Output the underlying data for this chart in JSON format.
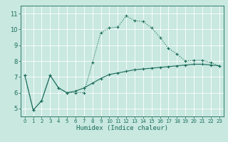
{
  "xlabel": "Humidex (Indice chaleur)",
  "ylabel": "",
  "xlim": [
    -0.5,
    23.5
  ],
  "ylim": [
    4.5,
    11.5
  ],
  "yticks": [
    5,
    6,
    7,
    8,
    9,
    10,
    11
  ],
  "xticks": [
    0,
    1,
    2,
    3,
    4,
    5,
    6,
    7,
    8,
    9,
    10,
    11,
    12,
    13,
    14,
    15,
    16,
    17,
    18,
    19,
    20,
    21,
    22,
    23
  ],
  "bg_color": "#c8e8e0",
  "grid_color": "#ffffff",
  "line_color": "#1a6b5a",
  "line1_x": [
    0,
    1,
    2,
    3,
    4,
    5,
    6,
    7,
    8,
    9,
    10,
    11,
    12,
    13,
    14,
    15,
    16,
    17,
    18,
    19,
    20,
    21,
    22,
    23
  ],
  "line1_y": [
    7.1,
    4.9,
    5.5,
    7.1,
    6.3,
    6.0,
    6.0,
    6.0,
    7.9,
    9.8,
    10.1,
    10.15,
    10.85,
    10.55,
    10.5,
    10.1,
    9.5,
    8.8,
    8.45,
    8.0,
    8.05,
    8.05,
    7.9,
    7.7
  ],
  "line2_x": [
    0,
    1,
    2,
    3,
    4,
    5,
    6,
    7,
    8,
    9,
    10,
    11,
    12,
    13,
    14,
    15,
    16,
    17,
    18,
    19,
    20,
    21,
    22,
    23
  ],
  "line2_y": [
    7.1,
    4.9,
    5.5,
    7.1,
    6.3,
    6.0,
    6.1,
    6.3,
    6.6,
    6.9,
    7.15,
    7.25,
    7.35,
    7.45,
    7.5,
    7.55,
    7.6,
    7.65,
    7.7,
    7.75,
    7.8,
    7.8,
    7.75,
    7.7
  ]
}
